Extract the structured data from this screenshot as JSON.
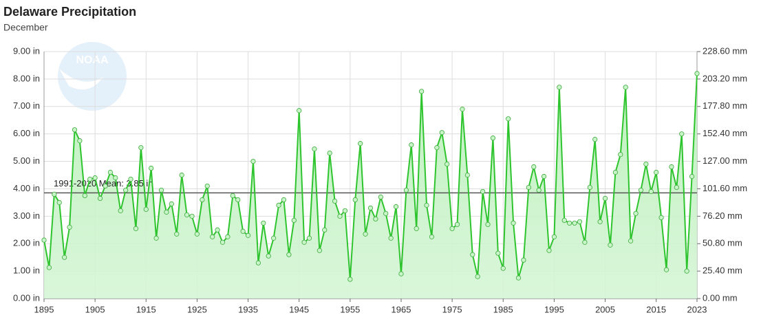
{
  "chart_data": {
    "type": "line",
    "title": "Delaware Precipitation",
    "subtitle": "December",
    "logo": "NOAA",
    "x": [
      1895,
      1896,
      1897,
      1898,
      1899,
      1900,
      1901,
      1902,
      1903,
      1904,
      1905,
      1906,
      1907,
      1908,
      1909,
      1910,
      1911,
      1912,
      1913,
      1914,
      1915,
      1916,
      1917,
      1918,
      1919,
      1920,
      1921,
      1922,
      1923,
      1924,
      1925,
      1926,
      1927,
      1928,
      1929,
      1930,
      1931,
      1932,
      1933,
      1934,
      1935,
      1936,
      1937,
      1938,
      1939,
      1940,
      1941,
      1942,
      1943,
      1944,
      1945,
      1946,
      1947,
      1948,
      1949,
      1950,
      1951,
      1952,
      1953,
      1954,
      1955,
      1956,
      1957,
      1958,
      1959,
      1960,
      1961,
      1962,
      1963,
      1964,
      1965,
      1966,
      1967,
      1968,
      1969,
      1970,
      1971,
      1972,
      1973,
      1974,
      1975,
      1976,
      1977,
      1978,
      1979,
      1980,
      1981,
      1982,
      1983,
      1984,
      1985,
      1986,
      1987,
      1988,
      1989,
      1990,
      1991,
      1992,
      1993,
      1994,
      1995,
      1996,
      1997,
      1998,
      1999,
      2000,
      2001,
      2002,
      2003,
      2004,
      2005,
      2006,
      2007,
      2008,
      2009,
      2010,
      2011,
      2012,
      2013,
      2014,
      2015,
      2016,
      2017,
      2018,
      2019,
      2020,
      2021,
      2022,
      2023
    ],
    "values": [
      2.13,
      1.13,
      3.8,
      3.5,
      1.5,
      2.6,
      6.15,
      5.75,
      3.75,
      4.35,
      4.4,
      3.65,
      4.1,
      4.6,
      4.4,
      3.2,
      3.95,
      4.35,
      2.55,
      5.5,
      3.25,
      4.75,
      2.2,
      3.95,
      3.15,
      3.45,
      2.35,
      4.5,
      3.05,
      3.0,
      2.35,
      3.6,
      4.1,
      2.25,
      2.5,
      2.05,
      2.25,
      3.75,
      3.6,
      2.45,
      2.3,
      5.0,
      1.3,
      2.75,
      1.55,
      2.2,
      3.4,
      3.6,
      1.6,
      2.85,
      6.85,
      2.05,
      2.2,
      5.45,
      1.75,
      2.5,
      5.3,
      3.55,
      3.0,
      3.2,
      0.7,
      3.6,
      5.65,
      2.35,
      3.3,
      2.9,
      3.7,
      3.1,
      2.2,
      3.35,
      0.9,
      3.95,
      5.6,
      2.55,
      7.55,
      3.4,
      2.25,
      5.5,
      6.05,
      4.9,
      2.55,
      2.7,
      6.9,
      4.5,
      1.6,
      0.8,
      3.9,
      2.7,
      5.85,
      1.65,
      1.1,
      6.55,
      2.75,
      0.75,
      1.4,
      4.05,
      4.8,
      3.95,
      4.45,
      1.75,
      2.25,
      7.7,
      2.85,
      2.75,
      2.75,
      2.8,
      2.05,
      4.05,
      5.8,
      2.8,
      3.65,
      1.95,
      4.6,
      5.25,
      7.7,
      2.1,
      3.1,
      3.95,
      4.9,
      3.9,
      4.6,
      2.95,
      1.05,
      4.8,
      4.05,
      6.0,
      1.0,
      4.45,
      8.2
    ],
    "color": "#2ec42e",
    "xlim": [
      1895,
      2023
    ],
    "xticks": [
      1895,
      1905,
      1915,
      1925,
      1935,
      1945,
      1955,
      1965,
      1975,
      1985,
      1995,
      2005,
      2015,
      2023
    ],
    "ylim": [
      0,
      9
    ],
    "yticks": [
      {
        "value": 0,
        "label": "0.00 in"
      },
      {
        "value": 1,
        "label": "1.00 in"
      },
      {
        "value": 2,
        "label": "2.00 in"
      },
      {
        "value": 3,
        "label": "3.00 in"
      },
      {
        "value": 4,
        "label": "4.00 in"
      },
      {
        "value": 5,
        "label": "5.00 in"
      },
      {
        "value": 6,
        "label": "6.00 in"
      },
      {
        "value": 7,
        "label": "7.00 in"
      },
      {
        "value": 8,
        "label": "8.00 in"
      },
      {
        "value": 9,
        "label": "9.00 in"
      }
    ],
    "y2lim": [
      0,
      228.6
    ],
    "y2ticks": [
      {
        "value": 0,
        "label": "0.00 mm"
      },
      {
        "value": 25.4,
        "label": "25.40 mm"
      },
      {
        "value": 50.8,
        "label": "50.80 mm"
      },
      {
        "value": 76.2,
        "label": "76.20 mm"
      },
      {
        "value": 101.6,
        "label": "101.60 mm"
      },
      {
        "value": 127,
        "label": "127.00 mm"
      },
      {
        "value": 152.4,
        "label": "152.40 mm"
      },
      {
        "value": 177.8,
        "label": "177.80 mm"
      },
      {
        "value": 203.2,
        "label": "203.20 mm"
      },
      {
        "value": 228.6,
        "label": "228.60 mm"
      }
    ],
    "mean": {
      "value": 3.85,
      "label": "1991-2020 Mean: 3.85 in"
    },
    "grid": true
  }
}
